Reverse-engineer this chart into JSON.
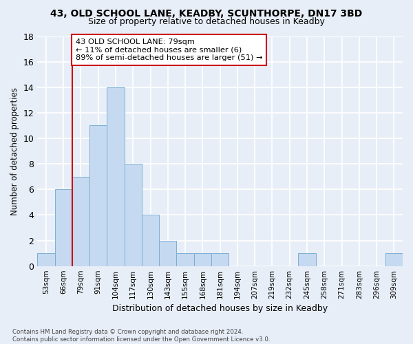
{
  "title1": "43, OLD SCHOOL LANE, KEADBY, SCUNTHORPE, DN17 3BD",
  "title2": "Size of property relative to detached houses in Keadby",
  "xlabel": "Distribution of detached houses by size in Keadby",
  "ylabel": "Number of detached properties",
  "categories": [
    "53sqm",
    "66sqm",
    "79sqm",
    "91sqm",
    "104sqm",
    "117sqm",
    "130sqm",
    "143sqm",
    "155sqm",
    "168sqm",
    "181sqm",
    "194sqm",
    "207sqm",
    "219sqm",
    "232sqm",
    "245sqm",
    "258sqm",
    "271sqm",
    "283sqm",
    "296sqm",
    "309sqm"
  ],
  "values": [
    1,
    6,
    7,
    11,
    14,
    8,
    4,
    2,
    1,
    1,
    1,
    0,
    0,
    0,
    0,
    1,
    0,
    0,
    0,
    0,
    1
  ],
  "bar_color": "#c5d9f0",
  "bar_edgecolor": "#7bafd4",
  "highlight_index": 2,
  "vline_color": "#cc0000",
  "vline_index": 2,
  "annotation_text": "43 OLD SCHOOL LANE: 79sqm\n← 11% of detached houses are smaller (6)\n89% of semi-detached houses are larger (51) →",
  "annotation_box_facecolor": "#ffffff",
  "annotation_box_edgecolor": "#cc0000",
  "ylim": [
    0,
    18
  ],
  "yticks": [
    0,
    2,
    4,
    6,
    8,
    10,
    12,
    14,
    16,
    18
  ],
  "footnote": "Contains HM Land Registry data © Crown copyright and database right 2024.\nContains public sector information licensed under the Open Government Licence v3.0.",
  "background_color": "#e8eef7",
  "grid_color": "#ffffff",
  "title1_fontsize": 10,
  "title2_fontsize": 9
}
